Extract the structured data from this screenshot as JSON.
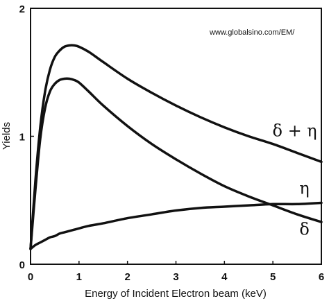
{
  "watermark": "www.globalsino.com/EM/",
  "chart_data": {
    "type": "line",
    "title": "",
    "xlabel": "Energy of Incident Electron beam (keV)",
    "ylabel": "Yields",
    "xlim": [
      0,
      6
    ],
    "ylim": [
      0,
      2
    ],
    "x_ticks": [
      0,
      1,
      2,
      3,
      4,
      5,
      6
    ],
    "y_ticks": [
      0,
      1,
      2
    ],
    "x_tick_labels": [
      "0",
      "1",
      "2",
      "3",
      "4",
      "5",
      "6"
    ],
    "y_tick_labels": [
      "0",
      "1",
      "2"
    ],
    "grid": false,
    "legend": "none",
    "line_color": "#111111",
    "series": [
      {
        "name": "δ + η",
        "x": [
          0,
          0.1,
          0.2,
          0.3,
          0.4,
          0.5,
          0.6,
          0.7,
          0.8,
          0.9,
          1.0,
          1.2,
          1.5,
          2.0,
          2.5,
          3.0,
          3.5,
          4.0,
          4.5,
          5.0,
          5.5,
          6.0
        ],
        "y": [
          0.12,
          0.65,
          1.07,
          1.35,
          1.52,
          1.62,
          1.67,
          1.7,
          1.71,
          1.71,
          1.7,
          1.66,
          1.58,
          1.45,
          1.34,
          1.24,
          1.15,
          1.07,
          1.0,
          0.94,
          0.87,
          0.8
        ]
      },
      {
        "name": "η",
        "x": [
          0,
          0.1,
          0.2,
          0.3,
          0.4,
          0.5,
          0.6,
          0.7,
          0.8,
          0.9,
          1.0,
          1.2,
          1.5,
          2.0,
          2.5,
          3.0,
          3.5,
          4.0,
          4.5,
          5.0,
          5.5,
          6.0
        ],
        "y": [
          0.12,
          0.58,
          0.98,
          1.22,
          1.35,
          1.41,
          1.44,
          1.45,
          1.45,
          1.44,
          1.42,
          1.35,
          1.24,
          1.08,
          0.94,
          0.82,
          0.71,
          0.61,
          0.53,
          0.46,
          0.39,
          0.33
        ]
      },
      {
        "name": "δ",
        "x": [
          0,
          0.1,
          0.2,
          0.3,
          0.4,
          0.5,
          0.6,
          0.7,
          0.8,
          0.9,
          1.0,
          1.2,
          1.5,
          2.0,
          2.5,
          3.0,
          3.5,
          4.0,
          4.5,
          5.0,
          5.5,
          6.0
        ],
        "y": [
          0.12,
          0.15,
          0.17,
          0.19,
          0.21,
          0.22,
          0.24,
          0.25,
          0.26,
          0.27,
          0.28,
          0.3,
          0.32,
          0.36,
          0.39,
          0.42,
          0.44,
          0.45,
          0.46,
          0.47,
          0.47,
          0.48
        ]
      }
    ],
    "annotations": [
      {
        "text": "δ + η",
        "series": "δ + η",
        "at_x": 5.45,
        "at_y": 1.0
      },
      {
        "text": "η",
        "series": "η",
        "at_x": 5.65,
        "at_y": 0.55
      },
      {
        "text": "δ",
        "series": "δ",
        "at_x": 5.65,
        "at_y": 0.23
      }
    ]
  }
}
